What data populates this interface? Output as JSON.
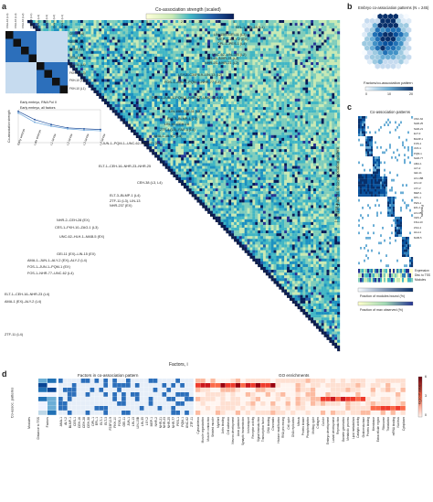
{
  "panels": {
    "a": {
      "letter": "a",
      "colorbar_title": "Co-association strength (scaled)",
      "colorbar_ticks": [
        "0",
        "1",
        "2",
        "3",
        "4",
        "5"
      ],
      "inset_col_labels": [
        "FKH-10 (L4)",
        "FKH-10 (L3)",
        "FKH-10 (L2)",
        "FKH-10 (L1)",
        "CES-1 (L4)",
        "CES-1 (L3)",
        "CES-1 (L2)",
        "CES-1 (L1)"
      ],
      "inset_row_labels": [
        "CES-1 (L4)",
        "CES-1 (L3)",
        "CES-1 (L2)",
        "CES-1 (L1)",
        "FKH-10 (L4)",
        "FKH-10 (L3)",
        "FKH-10 (L2)",
        "FKH-10 (L1)"
      ],
      "line_legend": [
        "Early embryo, RNA Pol II",
        "Early embryo, all factors"
      ],
      "line_ylabel": "Co-association strength",
      "line_xlabels": [
        "Early embryo",
        "Late embryo",
        "L1 larvae",
        "L2 larvae",
        "L3 larvae",
        "L4 larvae"
      ],
      "xlabel": "Factors, i",
      "ylabel": "Factors, j",
      "annotations": [
        "EFL-1–LIN-35 (L1)",
        "LIN-15B–GEI-11 (L3)",
        "MEP-1–LS Y-2 (EX)",
        "DPL-1–PES-1 (L4)",
        "UNC-62–LIN-15B (L2)",
        "NHR-25–NHR-23 (L2)",
        "NHR-25–NHR-21 (L2)",
        "LSY-2–C34F6.9–LIN-13 (L2)",
        "FOS-1–JUN-1–PQM-1–NHR-77 (L4)",
        "FOS-1–JUN-1–PQM-1–NHR-77–UNC-62 (L4)",
        "LIN-15B–GEI-11 (L3)",
        "ELT-3–BLMP-1 (L1)",
        "LIN-15–CEH-18",
        "ZTF-4 (L4), FAX-3 (L4)",
        "AMA-1–ALY-2 (L4)",
        "JUN-1–PQM-1–UNC-62–NHR-77 (L4)",
        "ELT-1–CEH-16–NHR-23–NHR-25",
        "CEH-38 (L3, L4)",
        "ELT-3–BLMP-1 (L4)",
        "ZTF-11 (L3), LIN-13",
        "NHR-237 (EX)",
        "NHR-2–CEH-28 (EX)",
        "CES-1–FKH-10–ZAG-1 (L3)",
        "UNC-62–HLH-1–MAB-5 (EX)",
        "GEI-11 (EX)–LIN-15 (EX)",
        "AMA-1–JUN-1–ALY-2 (EX)–ALY-2 (L4)",
        "FOS-1–JUN-1–PQM-1 (EX)",
        "FOS-1–NHR-77–UNC-62 (L4)",
        "ELT-1–CEH-16–NHR-23 (L4)",
        "AMA-1 (EX)–ALY-2 (L4)",
        "ZTF-11 (L4)"
      ]
    },
    "b": {
      "letter": "b",
      "title": "Embryo co-association patterns (N = 245)",
      "xlabel": "Factors/co-association pattern",
      "colorbar_ticks": [
        "0",
        "10",
        "20"
      ]
    },
    "c": {
      "letter": "c",
      "title": "Co-association patterns",
      "ylabel": "Factors in co-association pattern",
      "right_label": "Factors",
      "bottom_rows": [
        "Expression",
        "Dist. to TSS",
        "Modules"
      ],
      "row_labels": [
        "UNC-62",
        "NHR-25",
        "NHR-21",
        "ELT-3",
        "BLMP-1",
        "FOS-1",
        "JUN-1",
        "PQM-1",
        "NHR-77",
        "AMA-1",
        "ALY-2",
        "GEI-11",
        "LIN-15B",
        "LIN-13",
        "LSY-2",
        "MEP-1",
        "DPL-1",
        "PES-1",
        "EFL-1",
        "LIN-35",
        "CES-1",
        "FKH-10",
        "ZAG-1",
        "HLH-1",
        "MAB-5"
      ],
      "colorbar1_title": "Fraction of modules bound (%)",
      "colorbar2_title": "Fraction of max observed (%)",
      "colorbar1_ticks": [
        "0",
        "50",
        "100"
      ],
      "colorbar2_ticks": [
        "0",
        "50",
        "100"
      ]
    },
    "d": {
      "letter": "d",
      "left_title": "Factors in co-association pattern",
      "right_title": "GO enrichments",
      "ylabel": "Co-assoc. patterns",
      "left_rows": [
        "Modules",
        "Distance to TSS",
        "Factors"
      ],
      "factors": [
        "AMA-1",
        "ALY-2",
        "BLMP-1",
        "CES-1",
        "CEH-16",
        "CEH-28",
        "CEH-38",
        "DPL-1",
        "EFL-1",
        "ELT-1",
        "ELT-3",
        "F23F12.9",
        "FKH-10",
        "FOS-1",
        "GEI-11",
        "JUN-1",
        "LIN-13",
        "LIN-15B",
        "LIN-35",
        "LSY-2",
        "MEP-1",
        "NHR-2",
        "NHR-21",
        "NHR-23",
        "NHR-25",
        "NHR-77",
        "PES-1",
        "PQM-1",
        "UNC-62",
        "ZTF-11"
      ],
      "go_terms": [
        "Cytoskeleton",
        "Muscle organization",
        "Muscle contraction",
        "Striated muscle",
        "Myofibril",
        "Actin binding",
        "Cell adhesion",
        "Neuron development",
        "Axon guidance",
        "Synaptic transmission",
        "Ion transport",
        "Receptor activity",
        "Signal transduction",
        "Transcription factor",
        "DNA binding",
        "Chromatin",
        "Histone modification",
        "RNA processing",
        "Cell cycle",
        "DNA replication",
        "Mitosis",
        "Protein kinase",
        "Phosphorylation",
        "Molting cycle",
        "Collagen",
        "Cuticle",
        "Embryo development",
        "Larval development",
        "Reproduction",
        "Gamete generation",
        "Metabolic process",
        "Lipid metabolism",
        "Catalytic activity",
        "Oxidoreductase",
        "Protein binding",
        "Membrane",
        "Extracellular region",
        "Ribosome",
        "Translation",
        "mRNA binding",
        "Nucleus",
        "Cytoplasm"
      ],
      "colorbar_title": "-log10 P value",
      "colorbar_ticks": [
        "0",
        "3",
        "6"
      ]
    }
  },
  "colors": {
    "heat_low": "#f7fbd8",
    "heat_mid": "#41b6c4",
    "heat_high": "#081d58",
    "inset_blue": "#2c6fbb",
    "go_red": "#b2182b"
  }
}
